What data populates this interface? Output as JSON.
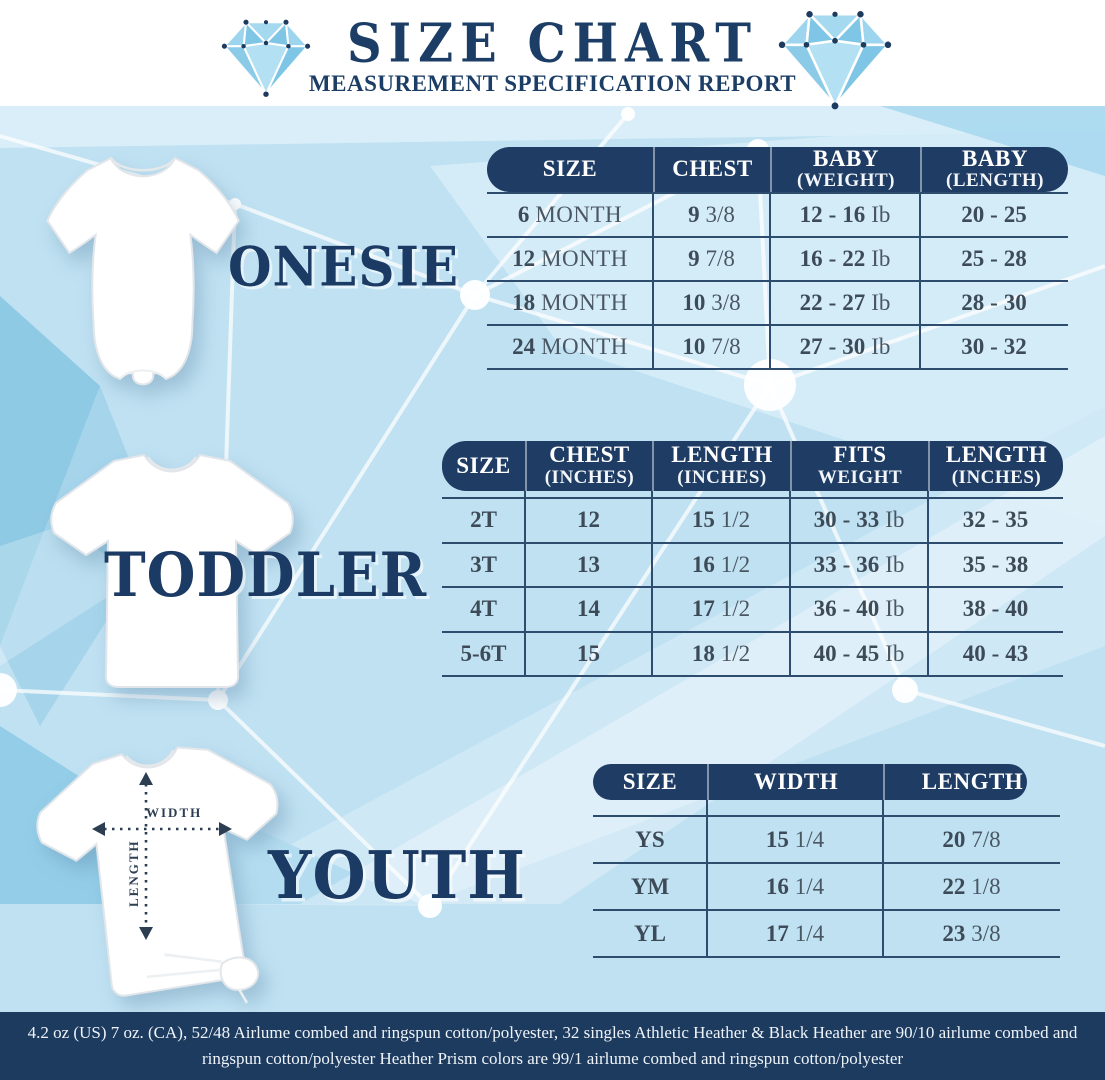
{
  "header": {
    "title": "SIZE CHART",
    "subtitle": "MEASUREMENT SPECIFICATION REPORT"
  },
  "sections": [
    {
      "id": "onesie",
      "label": "ONESIE",
      "table": {
        "columns": [
          "SIZE",
          "CHEST",
          "BABY\n(WEIGHT)",
          "BABY\n(LENGTH)"
        ],
        "rows": [
          [
            "6 MONTH",
            "9 3/8",
            "12 - 16 Ib",
            "20 - 25"
          ],
          [
            "12 MONTH",
            "9 7/8",
            "16 - 22 Ib",
            "25 - 28"
          ],
          [
            "18 MONTH",
            "10 3/8",
            "22 - 27 Ib",
            "28 - 30"
          ],
          [
            "24 MONTH",
            "10 7/8",
            "27 - 30 Ib",
            "30 - 32"
          ]
        ]
      }
    },
    {
      "id": "toddler",
      "label": "TODDLER",
      "table": {
        "columns": [
          "SIZE",
          "CHEST\n(INCHES)",
          "LENGTH\n(INCHES)",
          "FITS\nWEIGHT",
          "LENGTH\n(INCHES)"
        ],
        "rows": [
          [
            "2T",
            "12",
            "15 1/2",
            "30 - 33 Ib",
            "32 - 35"
          ],
          [
            "3T",
            "13",
            "16 1/2",
            "33 - 36 Ib",
            "35 - 38"
          ],
          [
            "4T",
            "14",
            "17 1/2",
            "36 - 40 Ib",
            "38 - 40"
          ],
          [
            "5-6T",
            "15",
            "18 1/2",
            "40 - 45 Ib",
            "40 - 43"
          ]
        ]
      }
    },
    {
      "id": "youth",
      "label": "YOUTH",
      "measure_arrows": {
        "width_label": "WIDTH",
        "length_label": "LENGTH"
      },
      "table": {
        "columns": [
          "SIZE",
          "WIDTH",
          "LENGTH"
        ],
        "rows": [
          [
            "YS",
            "15 1/4",
            "20 7/8"
          ],
          [
            "YM",
            "16 1/4",
            "22 1/8"
          ],
          [
            "YL",
            "17 1/4",
            "23 3/8"
          ]
        ]
      }
    }
  ],
  "footer": {
    "line1": "4.2 oz (US) 7 oz. (CA), 52/48 Airlume combed and ringspun cotton/polyester, 32 singles Athletic Heather & Black Heather are 90/10 airlume combed and",
    "line2": "ringspun cotton/polyester Heather Prism colors are 99/1 airlume combed and ringspun cotton/polyester"
  },
  "colors": {
    "navy": "#1e3c64",
    "title_navy": "#1c3e66",
    "table_text": "#44525e",
    "line_navy": "#2e4d6e",
    "bg_light_blue": "#bfe1f2",
    "diamond_blue": "#7fc6e6",
    "footer_navy": "#1d3a5f"
  }
}
